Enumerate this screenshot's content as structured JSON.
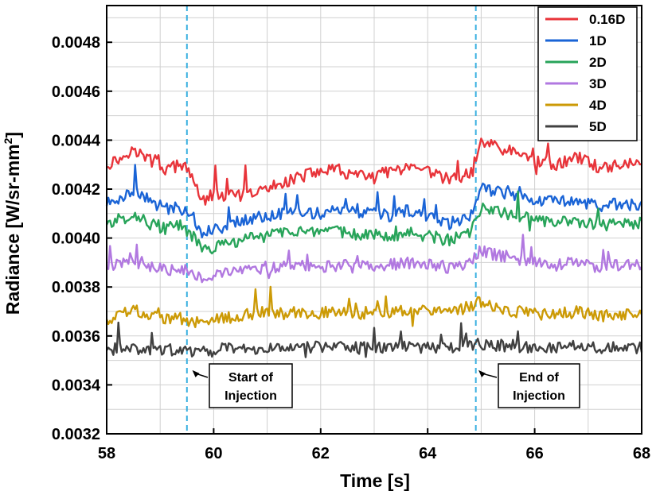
{
  "chart_data": {
    "type": "line",
    "title": "",
    "xlabel": "Time [s]",
    "ylabel_main": "Radiance [W/sr-mm",
    "ylabel_sup": "2",
    "ylabel_end": "]",
    "xlim": [
      58,
      68
    ],
    "ylim": [
      0.0032,
      0.00495
    ],
    "xticks": [
      58,
      60,
      62,
      64,
      66,
      68
    ],
    "xtick_labels": [
      "58",
      "60",
      "62",
      "64",
      "66",
      "68"
    ],
    "yticks": [
      0.0032,
      0.0034,
      0.0036,
      0.0038,
      0.004,
      0.0042,
      0.0044,
      0.0046,
      0.0048
    ],
    "ytick_labels": [
      "0.0032",
      "0.0034",
      "0.0036",
      "0.0038",
      "0.0040",
      "0.0042",
      "0.0044",
      "0.0046",
      "0.0048"
    ],
    "grid": true,
    "legend_position": "top-right",
    "vlines": [
      59.5,
      64.9
    ],
    "annotations": [
      {
        "line1": "Start of",
        "line2": "Injection",
        "x": 59.6,
        "y": 0.00346
      },
      {
        "line1": "End of",
        "line2": "Injection",
        "x": 64.95,
        "y": 0.00346
      }
    ],
    "series": [
      {
        "name": "0.16D",
        "color": "#e8343a",
        "x": [
          58,
          58.3,
          58.5,
          58.8,
          59.1,
          59.4,
          59.6,
          59.8,
          60.0,
          60.3,
          60.7,
          61.0,
          61.3,
          61.6,
          62.0,
          62.3,
          62.7,
          63.0,
          63.3,
          63.6,
          64.0,
          64.4,
          64.8,
          64.9,
          65.0,
          65.3,
          65.6,
          66.0,
          66.4,
          66.8,
          67.2,
          67.6,
          68.0
        ],
        "y": [
          0.0043,
          0.00433,
          0.00436,
          0.00432,
          0.00428,
          0.0043,
          0.00425,
          0.00415,
          0.00418,
          0.00417,
          0.00418,
          0.0042,
          0.00423,
          0.00425,
          0.00427,
          0.00428,
          0.00425,
          0.00426,
          0.00427,
          0.00428,
          0.00427,
          0.00424,
          0.00426,
          0.00432,
          0.0044,
          0.00437,
          0.00435,
          0.00432,
          0.0043,
          0.00433,
          0.00429,
          0.0043,
          0.00431
        ]
      },
      {
        "name": "1D",
        "color": "#1a64d6",
        "x": [
          58,
          58.3,
          58.5,
          58.8,
          59.1,
          59.4,
          59.6,
          59.8,
          60.0,
          60.3,
          60.7,
          61.0,
          61.3,
          61.6,
          62.0,
          62.3,
          62.7,
          63.0,
          63.3,
          63.6,
          64.0,
          64.4,
          64.8,
          64.9,
          65.0,
          65.3,
          65.6,
          66.0,
          66.4,
          66.8,
          67.2,
          67.6,
          68.0
        ],
        "y": [
          0.00414,
          0.00417,
          0.0042,
          0.00415,
          0.00412,
          0.00413,
          0.00409,
          0.00402,
          0.00404,
          0.00405,
          0.00408,
          0.00409,
          0.0041,
          0.00411,
          0.0041,
          0.00412,
          0.0041,
          0.0041,
          0.00409,
          0.00411,
          0.00409,
          0.00406,
          0.00409,
          0.00414,
          0.0042,
          0.00419,
          0.00418,
          0.00416,
          0.00415,
          0.00416,
          0.00413,
          0.00414,
          0.00413
        ]
      },
      {
        "name": "2D",
        "color": "#28a45a",
        "x": [
          58,
          58.3,
          58.5,
          58.8,
          59.1,
          59.4,
          59.6,
          59.8,
          60.0,
          60.3,
          60.7,
          61.0,
          61.3,
          61.6,
          62.0,
          62.3,
          62.7,
          63.0,
          63.3,
          63.6,
          64.0,
          64.4,
          64.8,
          64.9,
          65.0,
          65.3,
          65.6,
          66.0,
          66.4,
          66.8,
          67.2,
          67.6,
          68.0
        ],
        "y": [
          0.00406,
          0.00408,
          0.0041,
          0.00406,
          0.00404,
          0.00405,
          0.00401,
          0.00395,
          0.00396,
          0.00398,
          0.004,
          0.00401,
          0.00403,
          0.00403,
          0.00401,
          0.00403,
          0.00401,
          0.00402,
          0.00401,
          0.00402,
          0.00401,
          0.00399,
          0.00402,
          0.00407,
          0.00412,
          0.00411,
          0.00409,
          0.00408,
          0.00406,
          0.00407,
          0.00405,
          0.00406,
          0.00406
        ]
      },
      {
        "name": "3D",
        "color": "#b178e0",
        "x": [
          58,
          58.3,
          58.5,
          58.8,
          59.1,
          59.4,
          59.6,
          59.8,
          60.0,
          60.3,
          60.7,
          61.0,
          61.3,
          61.6,
          62.0,
          62.3,
          62.7,
          63.0,
          63.3,
          63.6,
          64.0,
          64.4,
          64.8,
          64.9,
          65.0,
          65.3,
          65.6,
          66.0,
          66.4,
          66.8,
          67.2,
          67.6,
          68.0
        ],
        "y": [
          0.00388,
          0.0039,
          0.00391,
          0.00388,
          0.00387,
          0.00388,
          0.00386,
          0.00384,
          0.00385,
          0.00386,
          0.00387,
          0.00388,
          0.00388,
          0.00389,
          0.00388,
          0.00389,
          0.00388,
          0.00389,
          0.00389,
          0.0039,
          0.00389,
          0.00388,
          0.0039,
          0.00393,
          0.00395,
          0.00393,
          0.00392,
          0.0039,
          0.00389,
          0.0039,
          0.00388,
          0.00389,
          0.00389
        ]
      },
      {
        "name": "4D",
        "color": "#cc9a06",
        "x": [
          58,
          58.3,
          58.5,
          58.8,
          59.1,
          59.4,
          59.6,
          59.8,
          60.0,
          60.3,
          60.7,
          61.0,
          61.3,
          61.6,
          62.0,
          62.3,
          62.7,
          63.0,
          63.3,
          63.6,
          64.0,
          64.4,
          64.8,
          64.9,
          65.0,
          65.3,
          65.6,
          66.0,
          66.4,
          66.8,
          67.2,
          67.6,
          68.0
        ],
        "y": [
          0.00367,
          0.00369,
          0.00371,
          0.00368,
          0.00367,
          0.00367,
          0.00366,
          0.00366,
          0.00367,
          0.00368,
          0.00369,
          0.0037,
          0.00369,
          0.0037,
          0.00369,
          0.0037,
          0.00369,
          0.0037,
          0.0037,
          0.00371,
          0.0037,
          0.00369,
          0.00372,
          0.00374,
          0.00373,
          0.00371,
          0.0037,
          0.00369,
          0.00369,
          0.0037,
          0.00368,
          0.00369,
          0.00368
        ]
      },
      {
        "name": "5D",
        "color": "#404040",
        "x": [
          58,
          58.3,
          58.5,
          58.8,
          59.1,
          59.4,
          59.6,
          59.8,
          60.0,
          60.3,
          60.7,
          61.0,
          61.3,
          61.6,
          62.0,
          62.3,
          62.7,
          63.0,
          63.3,
          63.6,
          64.0,
          64.4,
          64.8,
          64.9,
          65.0,
          65.3,
          65.6,
          66.0,
          66.4,
          66.8,
          67.2,
          67.6,
          68.0
        ],
        "y": [
          0.00354,
          0.00355,
          0.00355,
          0.00354,
          0.00354,
          0.00355,
          0.00354,
          0.00354,
          0.00354,
          0.00355,
          0.00355,
          0.00355,
          0.00355,
          0.00356,
          0.00355,
          0.00356,
          0.00355,
          0.00355,
          0.00355,
          0.00356,
          0.00355,
          0.00355,
          0.00356,
          0.00357,
          0.00357,
          0.00356,
          0.00356,
          0.00355,
          0.00355,
          0.00356,
          0.00355,
          0.00355,
          0.00355
        ]
      }
    ]
  }
}
